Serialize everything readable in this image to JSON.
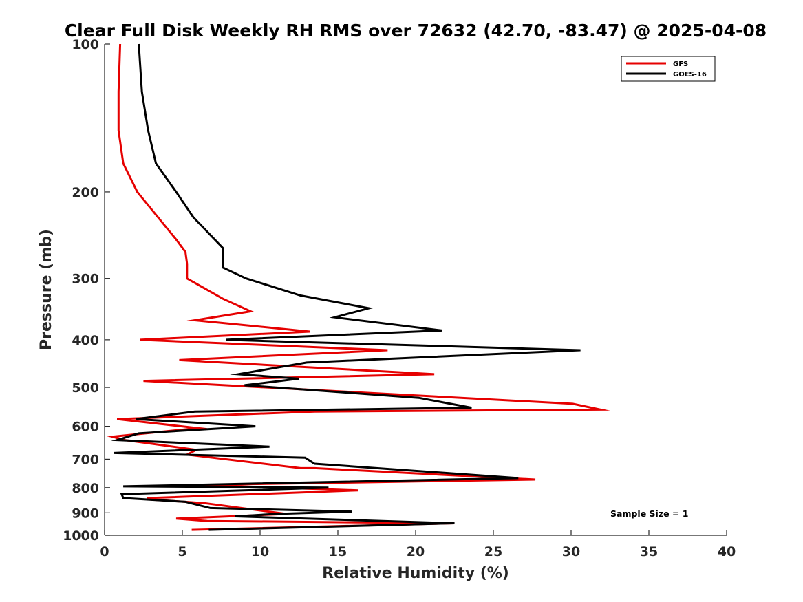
{
  "chart_data": {
    "type": "line",
    "title": "Clear Full Disk Weekly RH RMS over 72632 (42.70, -83.47) @ 2025-04-08",
    "xlabel": "Relative Humidity (%)",
    "ylabel": "Pressure (mb)",
    "xlim": [
      0,
      40
    ],
    "ylim": [
      100,
      1000
    ],
    "y_scale": "log",
    "y_reversed": true,
    "x_ticks": [
      0,
      5,
      10,
      15,
      20,
      25,
      30,
      35,
      40
    ],
    "y_ticks": [
      100,
      200,
      300,
      400,
      500,
      600,
      700,
      800,
      900,
      1000
    ],
    "grid": false,
    "legend_position": "top-right",
    "annotation": "Sample Size = 1",
    "series": [
      {
        "name": "GFS",
        "color": "#e60000",
        "points": [
          [
            1.0,
            100
          ],
          [
            0.9,
            125
          ],
          [
            0.9,
            150
          ],
          [
            1.2,
            175
          ],
          [
            2.1,
            200
          ],
          [
            4.6,
            250
          ],
          [
            5.2,
            265
          ],
          [
            5.3,
            280
          ],
          [
            5.3,
            300
          ],
          [
            7.6,
            330
          ],
          [
            9.4,
            350
          ],
          [
            5.8,
            365
          ],
          [
            13.2,
            385
          ],
          [
            2.3,
            400
          ],
          [
            18.2,
            420
          ],
          [
            4.8,
            440
          ],
          [
            21.2,
            470
          ],
          [
            2.5,
            485
          ],
          [
            30.1,
            540
          ],
          [
            31.9,
            555
          ],
          [
            13.5,
            560
          ],
          [
            0.8,
            580
          ],
          [
            6.0,
            605
          ],
          [
            0.5,
            630
          ],
          [
            1.3,
            640
          ],
          [
            5.9,
            670
          ],
          [
            5.3,
            685
          ],
          [
            12.6,
            730
          ],
          [
            13.5,
            730
          ],
          [
            27.7,
            770
          ],
          [
            6.0,
            790
          ],
          [
            16.3,
            810
          ],
          [
            2.8,
            840
          ],
          [
            2.8,
            845
          ],
          [
            6.4,
            860
          ],
          [
            11.7,
            905
          ],
          [
            4.6,
            925
          ],
          [
            6.6,
            935
          ],
          [
            22.5,
            945
          ],
          [
            5.6,
            975
          ]
        ]
      },
      {
        "name": "GOES-16",
        "color": "#000000",
        "points": [
          [
            2.2,
            100
          ],
          [
            2.4,
            125
          ],
          [
            2.8,
            150
          ],
          [
            3.3,
            175
          ],
          [
            4.6,
            200
          ],
          [
            5.7,
            225
          ],
          [
            7.6,
            260
          ],
          [
            7.6,
            285
          ],
          [
            9.1,
            300
          ],
          [
            12.6,
            325
          ],
          [
            17.0,
            345
          ],
          [
            14.8,
            360
          ],
          [
            21.7,
            383
          ],
          [
            7.8,
            400
          ],
          [
            30.6,
            420
          ],
          [
            13.0,
            445
          ],
          [
            8.6,
            470
          ],
          [
            12.5,
            480
          ],
          [
            9.0,
            495
          ],
          [
            20.2,
            525
          ],
          [
            23.6,
            550
          ],
          [
            5.8,
            560
          ],
          [
            2.0,
            580
          ],
          [
            9.7,
            600
          ],
          [
            2.2,
            620
          ],
          [
            0.8,
            640
          ],
          [
            10.6,
            660
          ],
          [
            0.6,
            680
          ],
          [
            12.9,
            695
          ],
          [
            13.5,
            715
          ],
          [
            26.6,
            765
          ],
          [
            1.2,
            795
          ],
          [
            14.4,
            800
          ],
          [
            1.1,
            825
          ],
          [
            1.2,
            840
          ],
          [
            5.2,
            855
          ],
          [
            6.8,
            880
          ],
          [
            15.9,
            895
          ],
          [
            11.0,
            905
          ],
          [
            8.4,
            915
          ],
          [
            22.5,
            945
          ],
          [
            6.7,
            975
          ]
        ]
      }
    ]
  }
}
